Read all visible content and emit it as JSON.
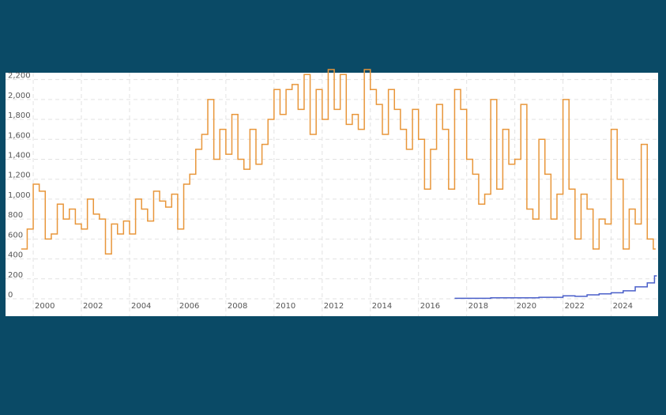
{
  "chart_data": {
    "type": "step",
    "x_series_note_free": null,
    "series": [
      {
        "color": "#e8963a",
        "x": [
          1999.5,
          1999.75,
          2000,
          2000.25,
          2000.5,
          2000.75,
          2001,
          2001.25,
          2001.5,
          2001.75,
          2002,
          2002.25,
          2002.5,
          2002.75,
          2003,
          2003.25,
          2003.5,
          2003.75,
          2004,
          2004.25,
          2004.5,
          2004.75,
          2005,
          2005.25,
          2005.5,
          2005.75,
          2006,
          2006.25,
          2006.5,
          2006.75,
          2007,
          2007.25,
          2007.5,
          2007.75,
          2008,
          2008.25,
          2008.5,
          2008.75,
          2009,
          2009.25,
          2009.5,
          2009.75,
          2010,
          2010.25,
          2010.5,
          2010.75,
          2011,
          2011.25,
          2011.5,
          2011.75,
          2012,
          2012.25,
          2012.5,
          2012.75,
          2013,
          2013.25,
          2013.5,
          2013.75,
          2014,
          2014.25,
          2014.5,
          2014.75,
          2015,
          2015.25,
          2015.5,
          2015.75,
          2016,
          2016.25,
          2016.5,
          2016.75,
          2017,
          2017.25,
          2017.5,
          2017.75,
          2018,
          2018.25,
          2018.5,
          2018.75,
          2019,
          2019.25,
          2019.5,
          2019.75,
          2020,
          2020.25,
          2020.5,
          2020.75,
          2021,
          2021.25,
          2021.5,
          2021.75,
          2022,
          2022.25,
          2022.5,
          2022.75,
          2023,
          2023.25,
          2023.5,
          2023.75,
          2024,
          2024.25,
          2024.5,
          2024.75,
          2025,
          2025.25,
          2025.5,
          2025.75
        ],
        "values": [
          500,
          700,
          1150,
          1080,
          600,
          650,
          950,
          800,
          900,
          750,
          700,
          1000,
          850,
          800,
          450,
          750,
          650,
          780,
          650,
          1000,
          900,
          780,
          1080,
          980,
          920,
          1050,
          700,
          1150,
          1250,
          1500,
          1650,
          2000,
          1400,
          1700,
          1450,
          1850,
          1400,
          1300,
          1700,
          1350,
          1550,
          1800,
          2100,
          1850,
          2100,
          2150,
          1900,
          2250,
          1650,
          2100,
          1800,
          2300,
          1900,
          2250,
          1750,
          1850,
          1700,
          2300,
          2100,
          1950,
          1650,
          2100,
          1900,
          1700,
          1500,
          1900,
          1600,
          1100,
          1500,
          1950,
          1700,
          1100,
          2100,
          1900,
          1400,
          1250,
          950,
          1050,
          2000,
          1100,
          1700,
          1350,
          1400,
          1950,
          900,
          800,
          1600,
          1250,
          800,
          1050,
          2000,
          1100,
          600,
          1050,
          900,
          500,
          800,
          750,
          1700,
          1200,
          500,
          900,
          750,
          1550,
          600,
          500
        ]
      },
      {
        "color": "#4a5fc9",
        "x": [
          2017.5,
          2018,
          2019,
          2020,
          2021,
          2022,
          2022.5,
          2023,
          2023.5,
          2024,
          2024.5,
          2025,
          2025.5,
          2025.8
        ],
        "values": [
          5,
          5,
          10,
          10,
          15,
          30,
          25,
          40,
          50,
          60,
          80,
          120,
          160,
          230
        ]
      }
    ],
    "xlim": [
      1998.85,
      2025.95
    ],
    "xticks": [
      2000,
      2002,
      2004,
      2006,
      2008,
      2010,
      2012,
      2014,
      2016,
      2018,
      2020,
      2022,
      2024
    ],
    "ylim": [
      0,
      2300
    ],
    "yticks": [
      0,
      200,
      400,
      600,
      800,
      {
        "value": 1000,
        "label": "1,000"
      },
      {
        "value": 1200,
        "label": "1,200"
      },
      {
        "value": 1400,
        "label": "1,400"
      },
      {
        "value": 1600,
        "label": "1,600"
      },
      {
        "value": 1800,
        "label": "1,800"
      },
      {
        "value": 2000,
        "label": "2,000"
      },
      {
        "value": 2200,
        "label": "2,200"
      }
    ],
    "grid": true
  }
}
